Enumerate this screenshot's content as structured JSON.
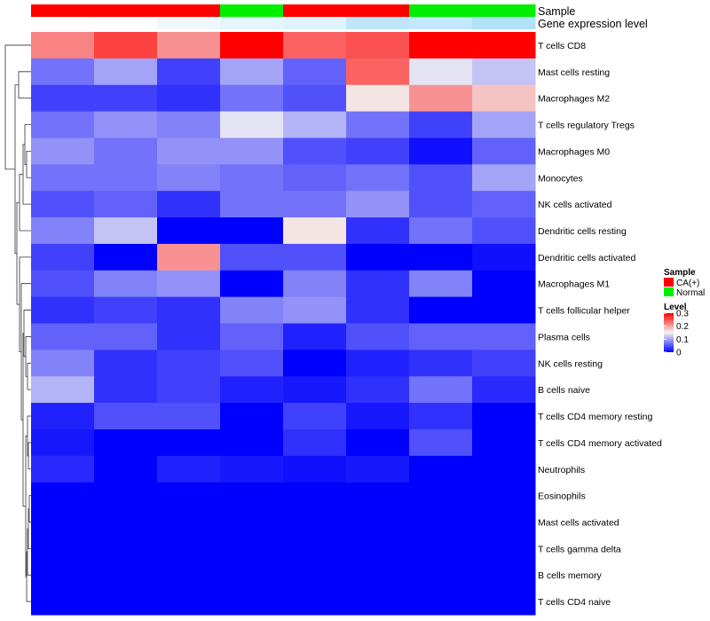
{
  "chart_data": {
    "type": "heatmap",
    "annotation_tracks": [
      {
        "name": "Sample",
        "values": [
          "CA(+)",
          "CA(+)",
          "CA(+)",
          "Normal",
          "CA(+)",
          "CA(+)",
          "Normal",
          "Normal"
        ]
      },
      {
        "name": "Gene expression level",
        "values": [
          0.0,
          0.03,
          0.12,
          0.18,
          0.22,
          0.45,
          0.42,
          0.55
        ]
      }
    ],
    "rows": [
      "T cells CD8",
      "Mast cells resting",
      "Macrophages M2",
      "T cells regulatory  Tregs",
      "Macrophages M0",
      "Monocytes",
      "NK cells activated",
      "Dendritic cells resting",
      "Dendritic cells activated",
      "Macrophages M1",
      "T cells follicular helper",
      "Plasma cells",
      "NK cells resting",
      "B cells naive",
      "T cells CD4 memory resting",
      "T cells CD4 memory activated",
      "Neutrophils",
      "Eosinophils",
      "Mast cells activated",
      "T cells gamma delta",
      "B cells memory",
      "T cells CD4 naive"
    ],
    "n_columns": 8,
    "values": [
      [
        0.22,
        0.26,
        0.21,
        0.3,
        0.24,
        0.25,
        0.3,
        0.3
      ],
      [
        0.07,
        0.1,
        0.04,
        0.1,
        0.06,
        0.24,
        0.14,
        0.12
      ],
      [
        0.04,
        0.04,
        0.03,
        0.07,
        0.05,
        0.16,
        0.21,
        0.18
      ],
      [
        0.07,
        0.09,
        0.08,
        0.14,
        0.11,
        0.07,
        0.04,
        0.1
      ],
      [
        0.09,
        0.07,
        0.09,
        0.09,
        0.05,
        0.04,
        0.01,
        0.06
      ],
      [
        0.07,
        0.07,
        0.08,
        0.07,
        0.06,
        0.07,
        0.05,
        0.1
      ],
      [
        0.05,
        0.06,
        0.03,
        0.07,
        0.07,
        0.09,
        0.05,
        0.06
      ],
      [
        0.08,
        0.12,
        0.0,
        0.0,
        0.16,
        0.03,
        0.07,
        0.05
      ],
      [
        0.04,
        0.0,
        0.21,
        0.05,
        0.05,
        0.0,
        0.0,
        0.01
      ],
      [
        0.05,
        0.08,
        0.09,
        0.0,
        0.08,
        0.03,
        0.08,
        0.0
      ],
      [
        0.03,
        0.04,
        0.03,
        0.08,
        0.09,
        0.03,
        0.0,
        0.0
      ],
      [
        0.06,
        0.06,
        0.03,
        0.06,
        0.02,
        0.05,
        0.06,
        0.06
      ],
      [
        0.08,
        0.03,
        0.04,
        0.05,
        0.0,
        0.02,
        0.03,
        0.04
      ],
      [
        0.11,
        0.03,
        0.04,
        0.02,
        0.015,
        0.03,
        0.07,
        0.025
      ],
      [
        0.02,
        0.05,
        0.05,
        0.0,
        0.04,
        0.015,
        0.03,
        0.0
      ],
      [
        0.015,
        0.0,
        0.0,
        0.0,
        0.03,
        0.0,
        0.05,
        0.0
      ],
      [
        0.025,
        0.0,
        0.02,
        0.015,
        0.01,
        0.015,
        0.0,
        0.0
      ],
      [
        0.0,
        0.0,
        0.0,
        0.0,
        0.0,
        0.0,
        0.0,
        0.0
      ],
      [
        0.0,
        0.0,
        0.0,
        0.0,
        0.0,
        0.0,
        0.0,
        0.0
      ],
      [
        0.0,
        0.0,
        0.0,
        0.0,
        0.0,
        0.0,
        0.0,
        0.0
      ],
      [
        0.0,
        0.0,
        0.0,
        0.0,
        0.0,
        0.0,
        0.0,
        0.0
      ],
      [
        0.0,
        0.0,
        0.0,
        0.0,
        0.0,
        0.0,
        0.0,
        0.0
      ]
    ],
    "value_range": [
      0,
      0.3
    ],
    "color_scale": {
      "low": "#0000ff",
      "mid": "#f4f4f4",
      "high": "#ff0000",
      "mid_value": 0.15
    },
    "legends": {
      "sample": {
        "title": "Sample",
        "entries": [
          {
            "label": "CA(+)",
            "color": "#ff0000"
          },
          {
            "label": "Normal",
            "color": "#00ee00"
          }
        ]
      },
      "level": {
        "title": "Level",
        "ticks": [
          "0.3",
          "0.2",
          "0.1",
          "0"
        ],
        "tick_values": [
          0.3,
          0.2,
          0.1,
          0
        ]
      }
    },
    "expression_track_color_scale": {
      "low": "#ffffff",
      "high": "#6fc8f0"
    },
    "dendrogram": "hierarchical clustering tree on rows (left side)"
  }
}
